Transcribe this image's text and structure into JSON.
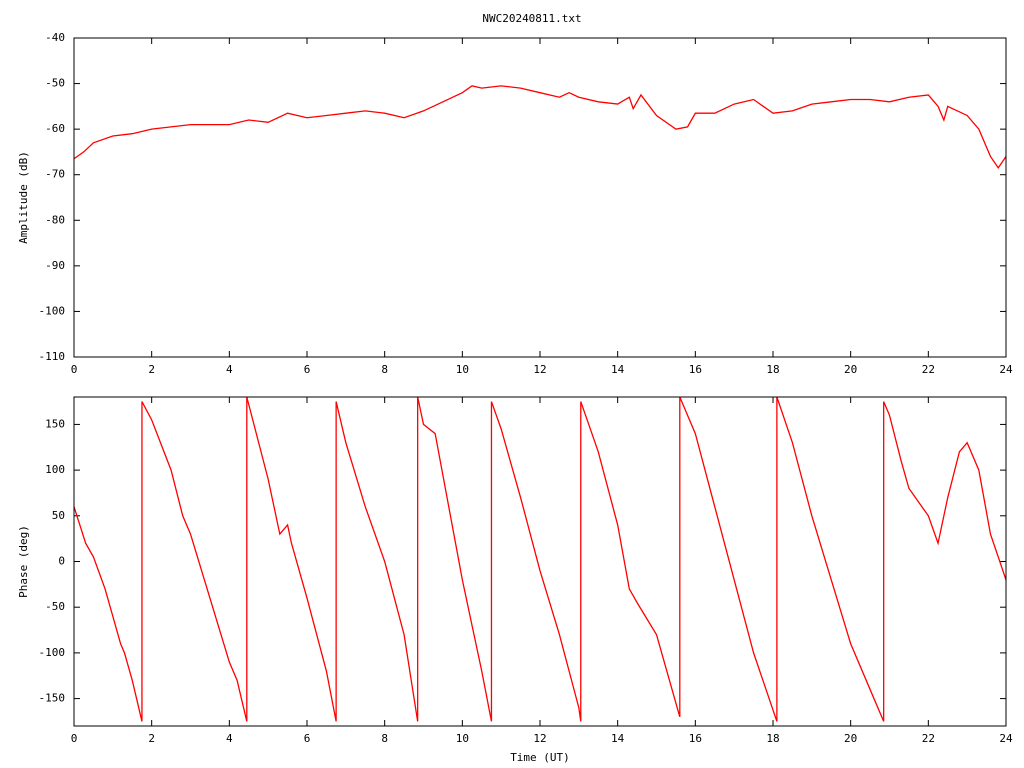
{
  "chart_data": [
    {
      "type": "line",
      "title": "NWC20240811.txt",
      "ylabel": "Amplitude (dB)",
      "xlim": [
        0,
        24
      ],
      "xticks": [
        0,
        2,
        4,
        6,
        8,
        10,
        12,
        14,
        16,
        18,
        20,
        22,
        24
      ],
      "ylim": [
        -110,
        -40
      ],
      "yticks": [
        -110,
        -100,
        -90,
        -80,
        -70,
        -60,
        -50,
        -40
      ],
      "series": [
        {
          "color": "#ff0000",
          "x": [
            0,
            0.25,
            0.5,
            1,
            1.5,
            2,
            2.5,
            3,
            3.5,
            4,
            4.5,
            5,
            5.5,
            6,
            6.5,
            7,
            7.5,
            8,
            8.5,
            9,
            9.5,
            10,
            10.25,
            10.5,
            11,
            11.5,
            12,
            12.5,
            12.75,
            13,
            13.5,
            14,
            14.3,
            14.4,
            14.6,
            15,
            15.5,
            15.8,
            16,
            16.5,
            17,
            17.5,
            18,
            18.5,
            19,
            19.5,
            20,
            20.5,
            21,
            21.5,
            22,
            22.25,
            22.4,
            22.5,
            23,
            23.3,
            23.6,
            23.8,
            24
          ],
          "values": [
            -66.5,
            -65,
            -63,
            -61.5,
            -61,
            -60,
            -59.5,
            -59,
            -59,
            -59,
            -58,
            -58.5,
            -56.5,
            -57.5,
            -57,
            -56.5,
            -56,
            -56.5,
            -57.5,
            -56,
            -54,
            -52,
            -50.5,
            -51,
            -50.5,
            -51,
            -52,
            -53,
            -52,
            -53,
            -54,
            -54.5,
            -53,
            -55.5,
            -52.5,
            -57,
            -60,
            -59.5,
            -56.5,
            -56.5,
            -54.5,
            -53.5,
            -56.5,
            -56,
            -54.5,
            -54,
            -53.5,
            -53.5,
            -54,
            -53,
            -52.5,
            -55,
            -58,
            -55,
            -57,
            -60,
            -66,
            -68.5,
            -66
          ]
        }
      ]
    },
    {
      "type": "line",
      "ylabel": "Phase (deg)",
      "xlabel": "Time (UT)",
      "xlim": [
        0,
        24
      ],
      "xticks": [
        0,
        2,
        4,
        6,
        8,
        10,
        12,
        14,
        16,
        18,
        20,
        22,
        24
      ],
      "ylim": [
        -180,
        180
      ],
      "yticks": [
        -150,
        -100,
        -50,
        0,
        50,
        100,
        150
      ],
      "series": [
        {
          "color": "#ff0000",
          "x": [
            0,
            0.3,
            0.5,
            0.8,
            1,
            1.2,
            1.3,
            1.5,
            1.75,
            1.75,
            2,
            2.5,
            2.8,
            3,
            3.5,
            4,
            4.2,
            4.45,
            4.45,
            5,
            5.3,
            5.5,
            5.6,
            6,
            6.5,
            6.75,
            6.75,
            7,
            7.5,
            8,
            8.5,
            8.85,
            8.85,
            9,
            9.3,
            10,
            10.5,
            10.75,
            10.75,
            11,
            11.5,
            12,
            12.5,
            13,
            13.05,
            13.05,
            13.5,
            14,
            14.3,
            14.5,
            15,
            15.2,
            15.5,
            15.6,
            15.6,
            16,
            16.5,
            17,
            17.5,
            18.1,
            18.1,
            18.5,
            19,
            19.5,
            20,
            20.5,
            20.85,
            20.85,
            21,
            21.3,
            21.5,
            22,
            22.25,
            22.5,
            22.8,
            23,
            23.3,
            23.6,
            24
          ],
          "values": [
            60,
            20,
            5,
            -30,
            -60,
            -90,
            -100,
            -130,
            -175,
            175,
            155,
            100,
            50,
            30,
            -40,
            -110,
            -130,
            -175,
            180,
            90,
            30,
            40,
            20,
            -40,
            -120,
            -175,
            175,
            130,
            60,
            0,
            -80,
            -175,
            180,
            150,
            140,
            -20,
            -120,
            -175,
            175,
            145,
            70,
            -10,
            -80,
            -160,
            -175,
            175,
            120,
            40,
            -30,
            -45,
            -80,
            -110,
            -155,
            -170,
            180,
            140,
            60,
            -20,
            -100,
            -175,
            180,
            130,
            50,
            -20,
            -90,
            -140,
            -175,
            175,
            160,
            110,
            80,
            50,
            20,
            70,
            120,
            130,
            100,
            30,
            -20
          ]
        }
      ]
    }
  ]
}
